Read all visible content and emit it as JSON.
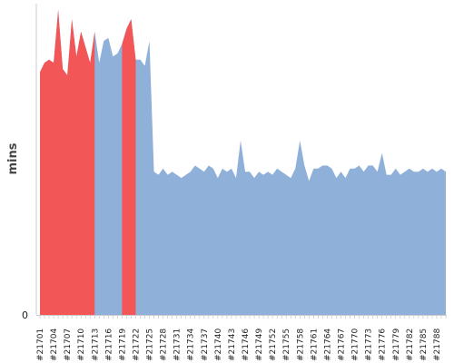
{
  "chart_data": {
    "type": "area",
    "ylabel": "mins",
    "yticks": [
      "0"
    ],
    "ylim": [
      0,
      100
    ],
    "grid": false,
    "legend": "none",
    "colors": {
      "base": "#8fb0d9",
      "highlight": "#f25656",
      "axis": "#cccccc"
    },
    "xtick_labels": [
      "#21701",
      "#21704",
      "#21707",
      "#21710",
      "#21713",
      "#21716",
      "#21719",
      "#21722",
      "#21725",
      "#21728",
      "#21731",
      "#21734",
      "#21737",
      "#21740",
      "#21743",
      "#21746",
      "#21749",
      "#21752",
      "#21755",
      "#21758",
      "#21761",
      "#21764",
      "#21767",
      "#21770",
      "#21773",
      "#21776",
      "#21779",
      "#21782",
      "#21785",
      "#21788"
    ],
    "x": [
      21701,
      21702,
      21703,
      21704,
      21705,
      21706,
      21707,
      21708,
      21709,
      21710,
      21711,
      21712,
      21713,
      21714,
      21715,
      21716,
      21717,
      21718,
      21719,
      21720,
      21721,
      21722,
      21723,
      21724,
      21725,
      21726,
      21727,
      21728,
      21729,
      21730,
      21731,
      21732,
      21733,
      21734,
      21735,
      21736,
      21737,
      21738,
      21739,
      21740,
      21741,
      21742,
      21743,
      21744,
      21745,
      21746,
      21747,
      21748,
      21749,
      21750,
      21751,
      21752,
      21753,
      21754,
      21755,
      21756,
      21757,
      21758,
      21759,
      21760,
      21761,
      21762,
      21763,
      21764,
      21765,
      21766,
      21767,
      21768,
      21769,
      21770,
      21771,
      21772,
      21773,
      21774,
      21775,
      21776,
      21777,
      21778,
      21779,
      21780,
      21781,
      21782,
      21783,
      21784,
      21785,
      21786,
      21787,
      21788,
      21789,
      21790
    ],
    "values": [
      78,
      81,
      82,
      81,
      98,
      79,
      77,
      95,
      83,
      91,
      86,
      81,
      91,
      81,
      88,
      89,
      83,
      84,
      87,
      92,
      95,
      82,
      82,
      80,
      88,
      46,
      45,
      47,
      45,
      46,
      45,
      44,
      45,
      46,
      48,
      47,
      46,
      48,
      47,
      44,
      47,
      46,
      47,
      44,
      56,
      46,
      46,
      44,
      46,
      45,
      46,
      45,
      47,
      46,
      45,
      44,
      47,
      56,
      48,
      43,
      47,
      47,
      48,
      48,
      47,
      44,
      46,
      44,
      47,
      47,
      48,
      46,
      48,
      48,
      46,
      52,
      45,
      45,
      47,
      45,
      46,
      47,
      46,
      46,
      47,
      46,
      47,
      46,
      47,
      46
    ],
    "highlight": [
      true,
      true,
      true,
      true,
      true,
      true,
      true,
      true,
      true,
      true,
      true,
      true,
      true,
      false,
      false,
      false,
      false,
      false,
      true,
      true,
      true,
      true,
      false,
      false,
      false,
      false,
      false,
      false,
      false,
      false,
      false,
      false,
      false,
      false,
      false,
      false,
      false,
      false,
      false,
      false,
      false,
      false,
      false,
      false,
      false,
      false,
      false,
      false,
      false,
      false,
      false,
      false,
      false,
      false,
      false,
      false,
      false,
      false,
      false,
      false,
      false,
      false,
      false,
      false,
      false,
      false,
      false,
      false,
      false,
      false,
      false,
      false,
      false,
      false,
      false,
      false,
      false,
      false,
      false,
      false,
      false,
      false,
      false,
      false,
      false,
      false,
      false,
      false,
      false,
      false
    ]
  }
}
